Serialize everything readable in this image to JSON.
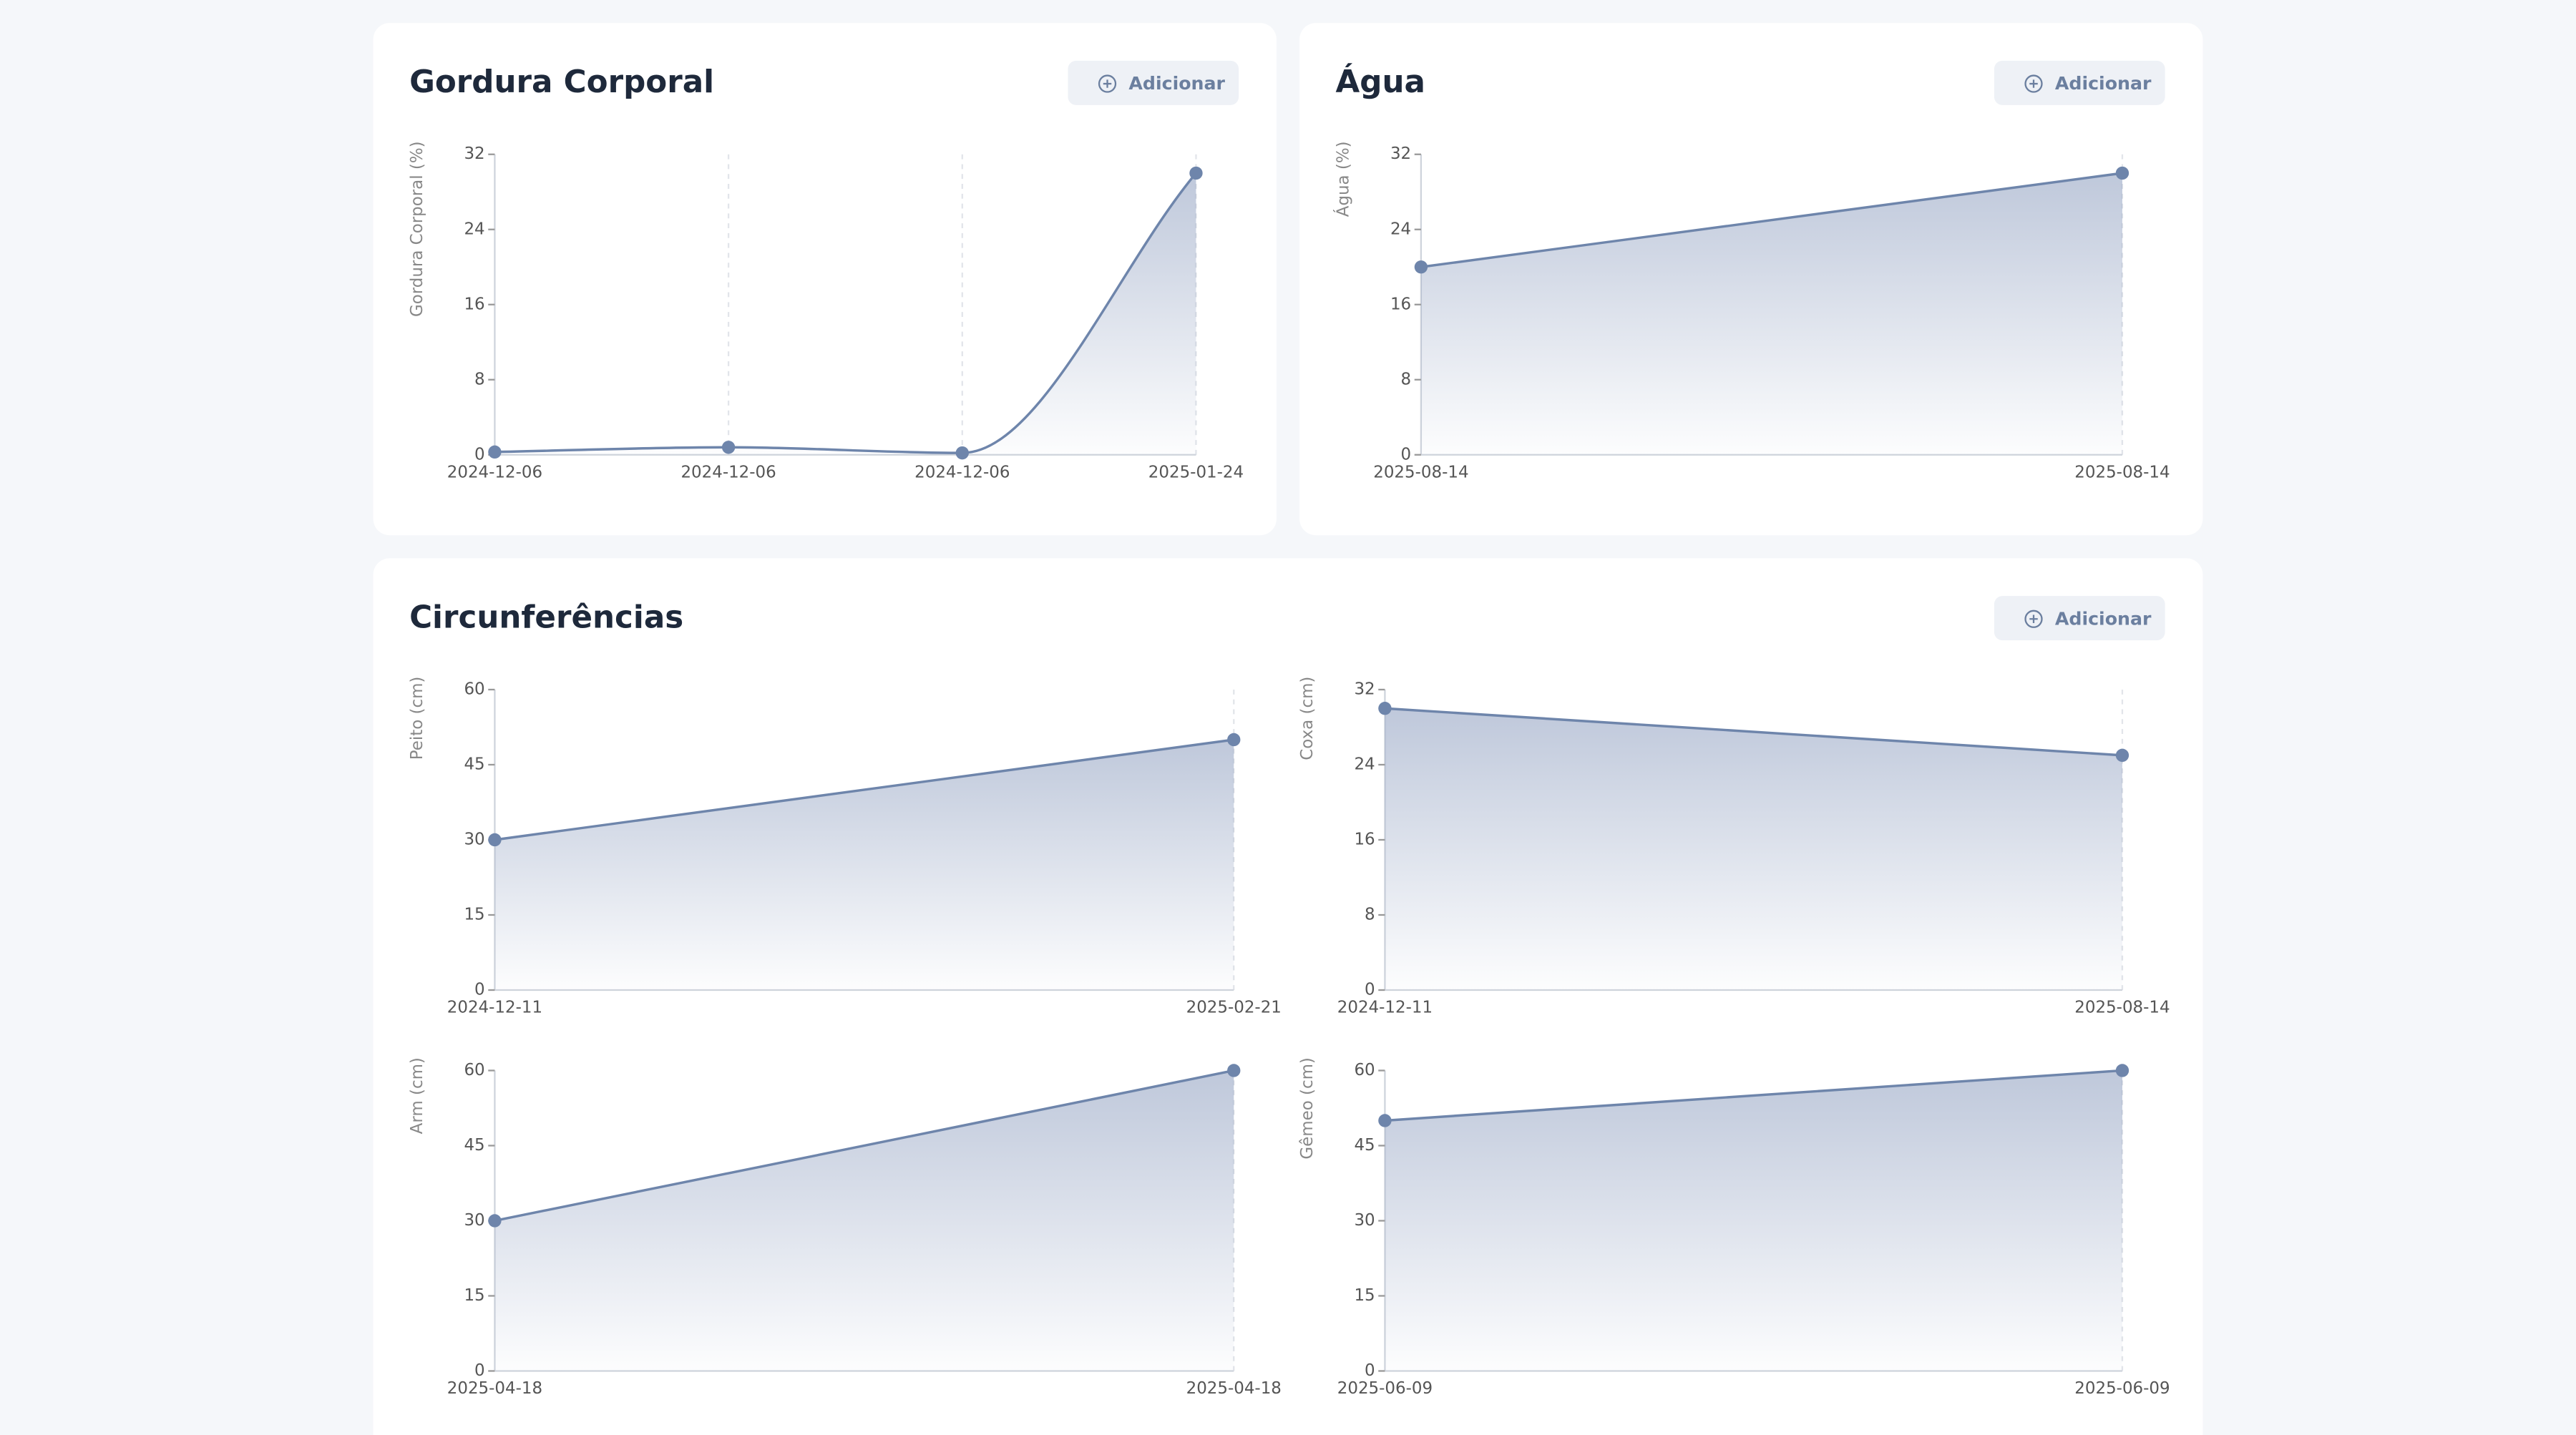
{
  "cards": [
    {
      "title": "Gordura Corporal",
      "button": "Adicionar"
    },
    {
      "title": "Água",
      "button": "Adicionar"
    },
    {
      "title": "Circunferências",
      "button": "Adicionar"
    }
  ],
  "chart_data": [
    {
      "type": "area",
      "ylabel": "Gordura Corporal (%)",
      "categories": [
        "2024-12-06",
        "2024-12-06",
        "2024-12-06",
        "2025-01-24"
      ],
      "values": [
        0.3,
        0.8,
        0.2,
        30
      ],
      "ylim": [
        0,
        32
      ],
      "yticks": [
        0,
        8,
        16,
        24,
        32
      ],
      "color": "#6e85ab",
      "smooth": true
    },
    {
      "type": "area",
      "ylabel": "Água (%)",
      "categories": [
        "2025-08-14",
        "2025-08-14"
      ],
      "values": [
        20,
        30
      ],
      "ylim": [
        0,
        32
      ],
      "yticks": [
        0,
        8,
        16,
        24,
        32
      ],
      "color": "#6e85ab",
      "smooth": false
    },
    {
      "type": "area",
      "ylabel": "Peito (cm)",
      "categories": [
        "2024-12-11",
        "2025-02-21"
      ],
      "values": [
        30,
        50
      ],
      "ylim": [
        0,
        60
      ],
      "yticks": [
        0,
        15,
        30,
        45,
        60
      ],
      "color": "#6e85ab",
      "smooth": false
    },
    {
      "type": "area",
      "ylabel": "Coxa (cm)",
      "categories": [
        "2024-12-11",
        "2025-08-14"
      ],
      "values": [
        30,
        25
      ],
      "ylim": [
        0,
        32
      ],
      "yticks": [
        0,
        8,
        16,
        24,
        32
      ],
      "color": "#6e85ab",
      "smooth": false
    },
    {
      "type": "area",
      "ylabel": "Arm (cm)",
      "categories": [
        "2025-04-18",
        "2025-04-18"
      ],
      "values": [
        30,
        60
      ],
      "ylim": [
        0,
        60
      ],
      "yticks": [
        0,
        15,
        30,
        45,
        60
      ],
      "color": "#6e85ab",
      "smooth": false
    },
    {
      "type": "area",
      "ylabel": "Gêmeo (cm)",
      "categories": [
        "2025-06-09",
        "2025-06-09"
      ],
      "values": [
        50,
        60
      ],
      "ylim": [
        0,
        60
      ],
      "yticks": [
        0,
        15,
        30,
        45,
        60
      ],
      "color": "#6e85ab",
      "smooth": false
    }
  ]
}
